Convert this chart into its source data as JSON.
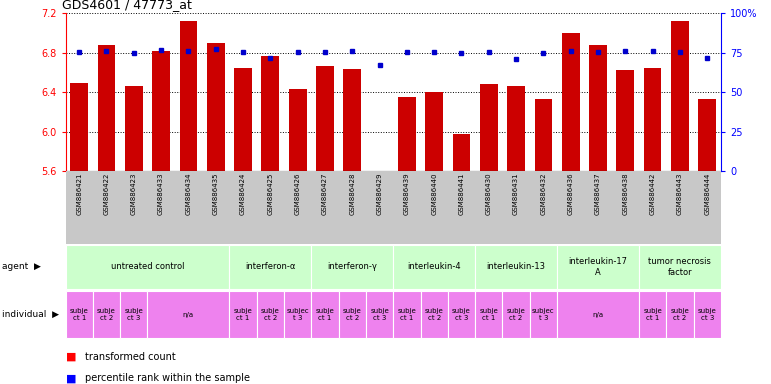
{
  "title": "GDS4601 / 47773_at",
  "samples": [
    "GSM886421",
    "GSM886422",
    "GSM886423",
    "GSM886433",
    "GSM886434",
    "GSM886435",
    "GSM886424",
    "GSM886425",
    "GSM886426",
    "GSM886427",
    "GSM886428",
    "GSM886429",
    "GSM886439",
    "GSM886440",
    "GSM886441",
    "GSM886430",
    "GSM886431",
    "GSM886432",
    "GSM886436",
    "GSM886437",
    "GSM886438",
    "GSM886442",
    "GSM886443",
    "GSM886444"
  ],
  "bar_values": [
    6.49,
    6.88,
    6.46,
    6.82,
    7.12,
    6.9,
    6.65,
    6.77,
    6.43,
    6.67,
    6.64,
    5.55,
    6.35,
    6.4,
    5.97,
    6.48,
    6.46,
    6.33,
    7.0,
    6.88,
    6.63,
    6.65,
    7.12,
    6.33
  ],
  "percentile_values": [
    6.81,
    6.82,
    6.8,
    6.83,
    6.82,
    6.84,
    6.81,
    6.75,
    6.81,
    6.81,
    6.82,
    6.68,
    6.81,
    6.81,
    6.8,
    6.81,
    6.74,
    6.8,
    6.82,
    6.81,
    6.82,
    6.82,
    6.81,
    6.75
  ],
  "ylim_left": [
    5.6,
    7.2
  ],
  "ylim_right": [
    0,
    100
  ],
  "yticks_left": [
    5.6,
    6.0,
    6.4,
    6.8,
    7.2
  ],
  "yticks_right": [
    0,
    25,
    50,
    75,
    100
  ],
  "bar_color": "#cc0000",
  "dot_color": "#0000cc",
  "agents": [
    {
      "label": "untreated control",
      "start": 0,
      "end": 6
    },
    {
      "label": "interferon-α",
      "start": 6,
      "end": 9
    },
    {
      "label": "interferon-γ",
      "start": 9,
      "end": 12
    },
    {
      "label": "interleukin-4",
      "start": 12,
      "end": 15
    },
    {
      "label": "interleukin-13",
      "start": 15,
      "end": 18
    },
    {
      "label": "interleukin-17\nA",
      "start": 18,
      "end": 21
    },
    {
      "label": "tumor necrosis\nfactor",
      "start": 21,
      "end": 24
    }
  ],
  "agent_color": "#ccffcc",
  "indiv_groups": [
    [
      0,
      1,
      "subje\nct 1",
      false
    ],
    [
      1,
      2,
      "subje\nct 2",
      false
    ],
    [
      2,
      3,
      "subje\nct 3",
      false
    ],
    [
      3,
      6,
      "n/a",
      true
    ],
    [
      6,
      7,
      "subje\nct 1",
      false
    ],
    [
      7,
      8,
      "subje\nct 2",
      false
    ],
    [
      8,
      9,
      "subjec\nt 3",
      false
    ],
    [
      9,
      10,
      "subje\nct 1",
      false
    ],
    [
      10,
      11,
      "subje\nct 2",
      false
    ],
    [
      11,
      12,
      "subje\nct 3",
      false
    ],
    [
      12,
      13,
      "subje\nct 1",
      false
    ],
    [
      13,
      14,
      "subje\nct 2",
      false
    ],
    [
      14,
      15,
      "subje\nct 3",
      false
    ],
    [
      15,
      16,
      "subje\nct 1",
      false
    ],
    [
      16,
      17,
      "subje\nct 2",
      false
    ],
    [
      17,
      18,
      "subjec\nt 3",
      false
    ],
    [
      18,
      21,
      "n/a",
      true
    ],
    [
      21,
      22,
      "subje\nct 1",
      false
    ],
    [
      22,
      23,
      "subje\nct 2",
      false
    ],
    [
      23,
      24,
      "subje\nct 3",
      false
    ]
  ],
  "indiv_color": "#ee82ee",
  "indiv_na_color": "#ee82ee",
  "label_gray": "#c8c8c8"
}
